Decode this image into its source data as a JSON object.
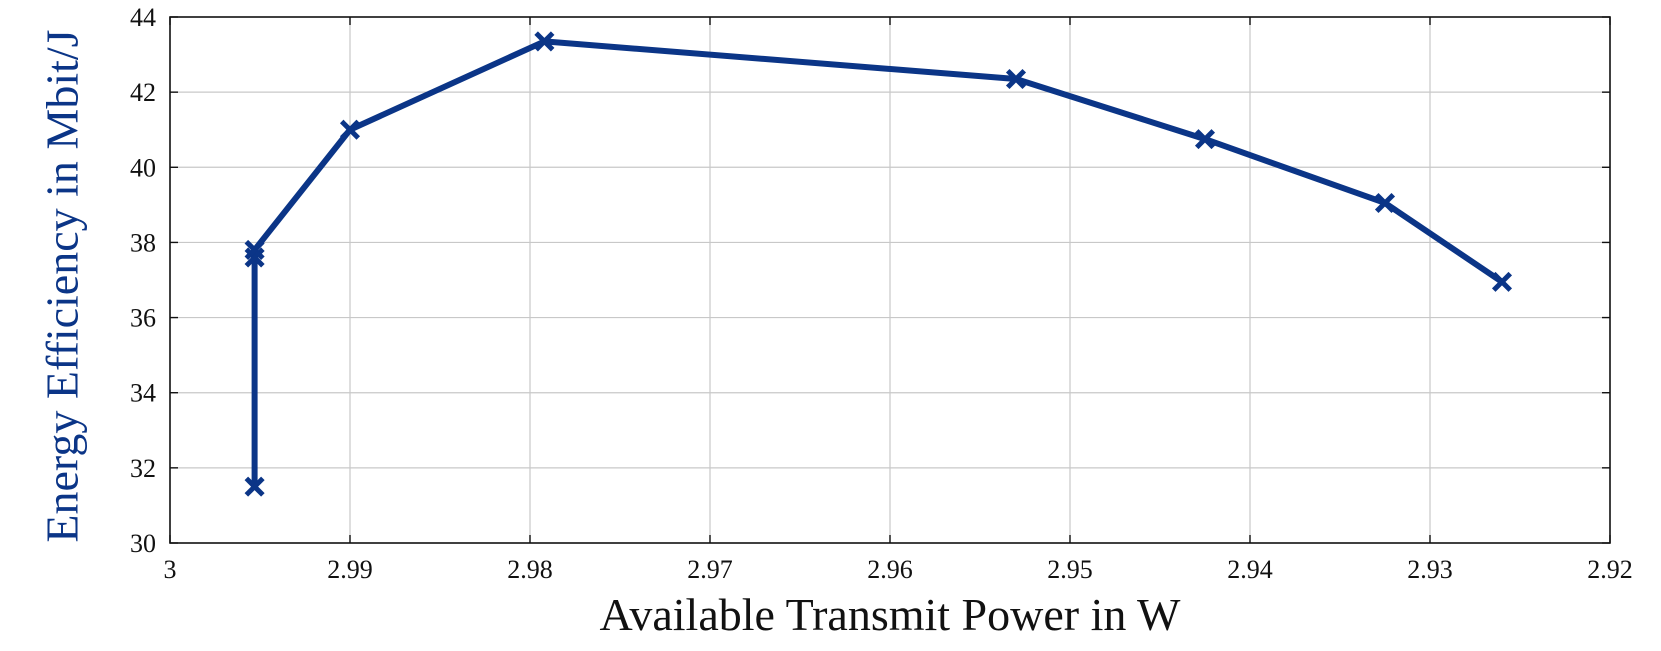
{
  "chart_data": {
    "type": "line",
    "title": "",
    "xlabel": "Available Transmit Power in W",
    "ylabel": "Energy Efficiency in Mbit/J",
    "xlim": [
      3,
      2.92
    ],
    "x_reversed": true,
    "ylim": [
      30,
      44
    ],
    "xticks": [
      "3",
      "2.99",
      "2.98",
      "2.97",
      "2.96",
      "2.95",
      "2.94",
      "2.93",
      "2.92"
    ],
    "yticks": [
      "30",
      "32",
      "34",
      "36",
      "38",
      "40",
      "42",
      "44"
    ],
    "grid": true,
    "legend": "none",
    "series": [
      {
        "marker": "x",
        "color": "#0b3587",
        "points": [
          {
            "x": 2.9953,
            "y": 31.5
          },
          {
            "x": 2.9953,
            "y": 37.6
          },
          {
            "x": 2.9953,
            "y": 37.8
          },
          {
            "x": 2.99,
            "y": 41.0
          },
          {
            "x": 2.9792,
            "y": 43.35
          },
          {
            "x": 2.953,
            "y": 42.35
          },
          {
            "x": 2.9425,
            "y": 40.75
          },
          {
            "x": 2.9325,
            "y": 39.05
          },
          {
            "x": 2.926,
            "y": 36.95
          }
        ]
      }
    ]
  }
}
